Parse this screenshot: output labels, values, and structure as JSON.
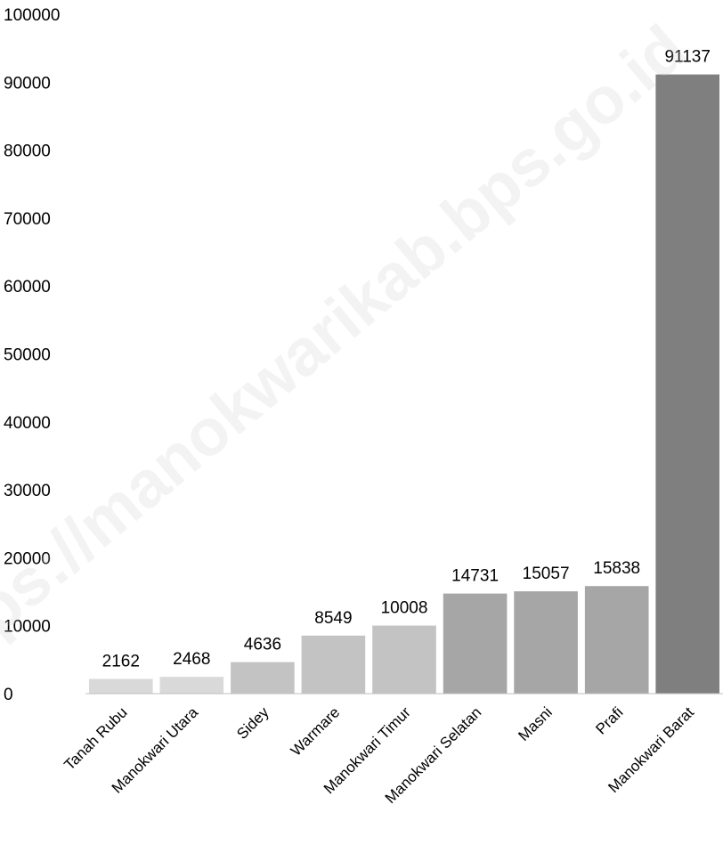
{
  "chart_data": {
    "type": "bar",
    "categories": [
      "Tanah Rubu",
      "Manokwari Utara",
      "Sidey",
      "Warmare",
      "Manokwari Timur",
      "Manokwari Selatan",
      "Masni",
      "Prafi",
      "Manokwari Barat"
    ],
    "values": [
      2162,
      2468,
      4636,
      8549,
      10008,
      14731,
      15057,
      15838,
      91137
    ],
    "bar_colors": [
      "#d9d9d9",
      "#d9d9d9",
      "#c3c3c3",
      "#c3c3c3",
      "#c3c3c3",
      "#a6a6a6",
      "#a6a6a6",
      "#a6a6a6",
      "#7f7f7f"
    ],
    "yticks": [
      "0",
      "10000",
      "20000",
      "30000",
      "40000",
      "50000",
      "60000",
      "70000",
      "80000",
      "90000",
      "100000"
    ],
    "ylim": [
      0,
      100000
    ],
    "grid": false,
    "legend": "none"
  },
  "watermark": "https://manokwarikab.bps.go.id"
}
